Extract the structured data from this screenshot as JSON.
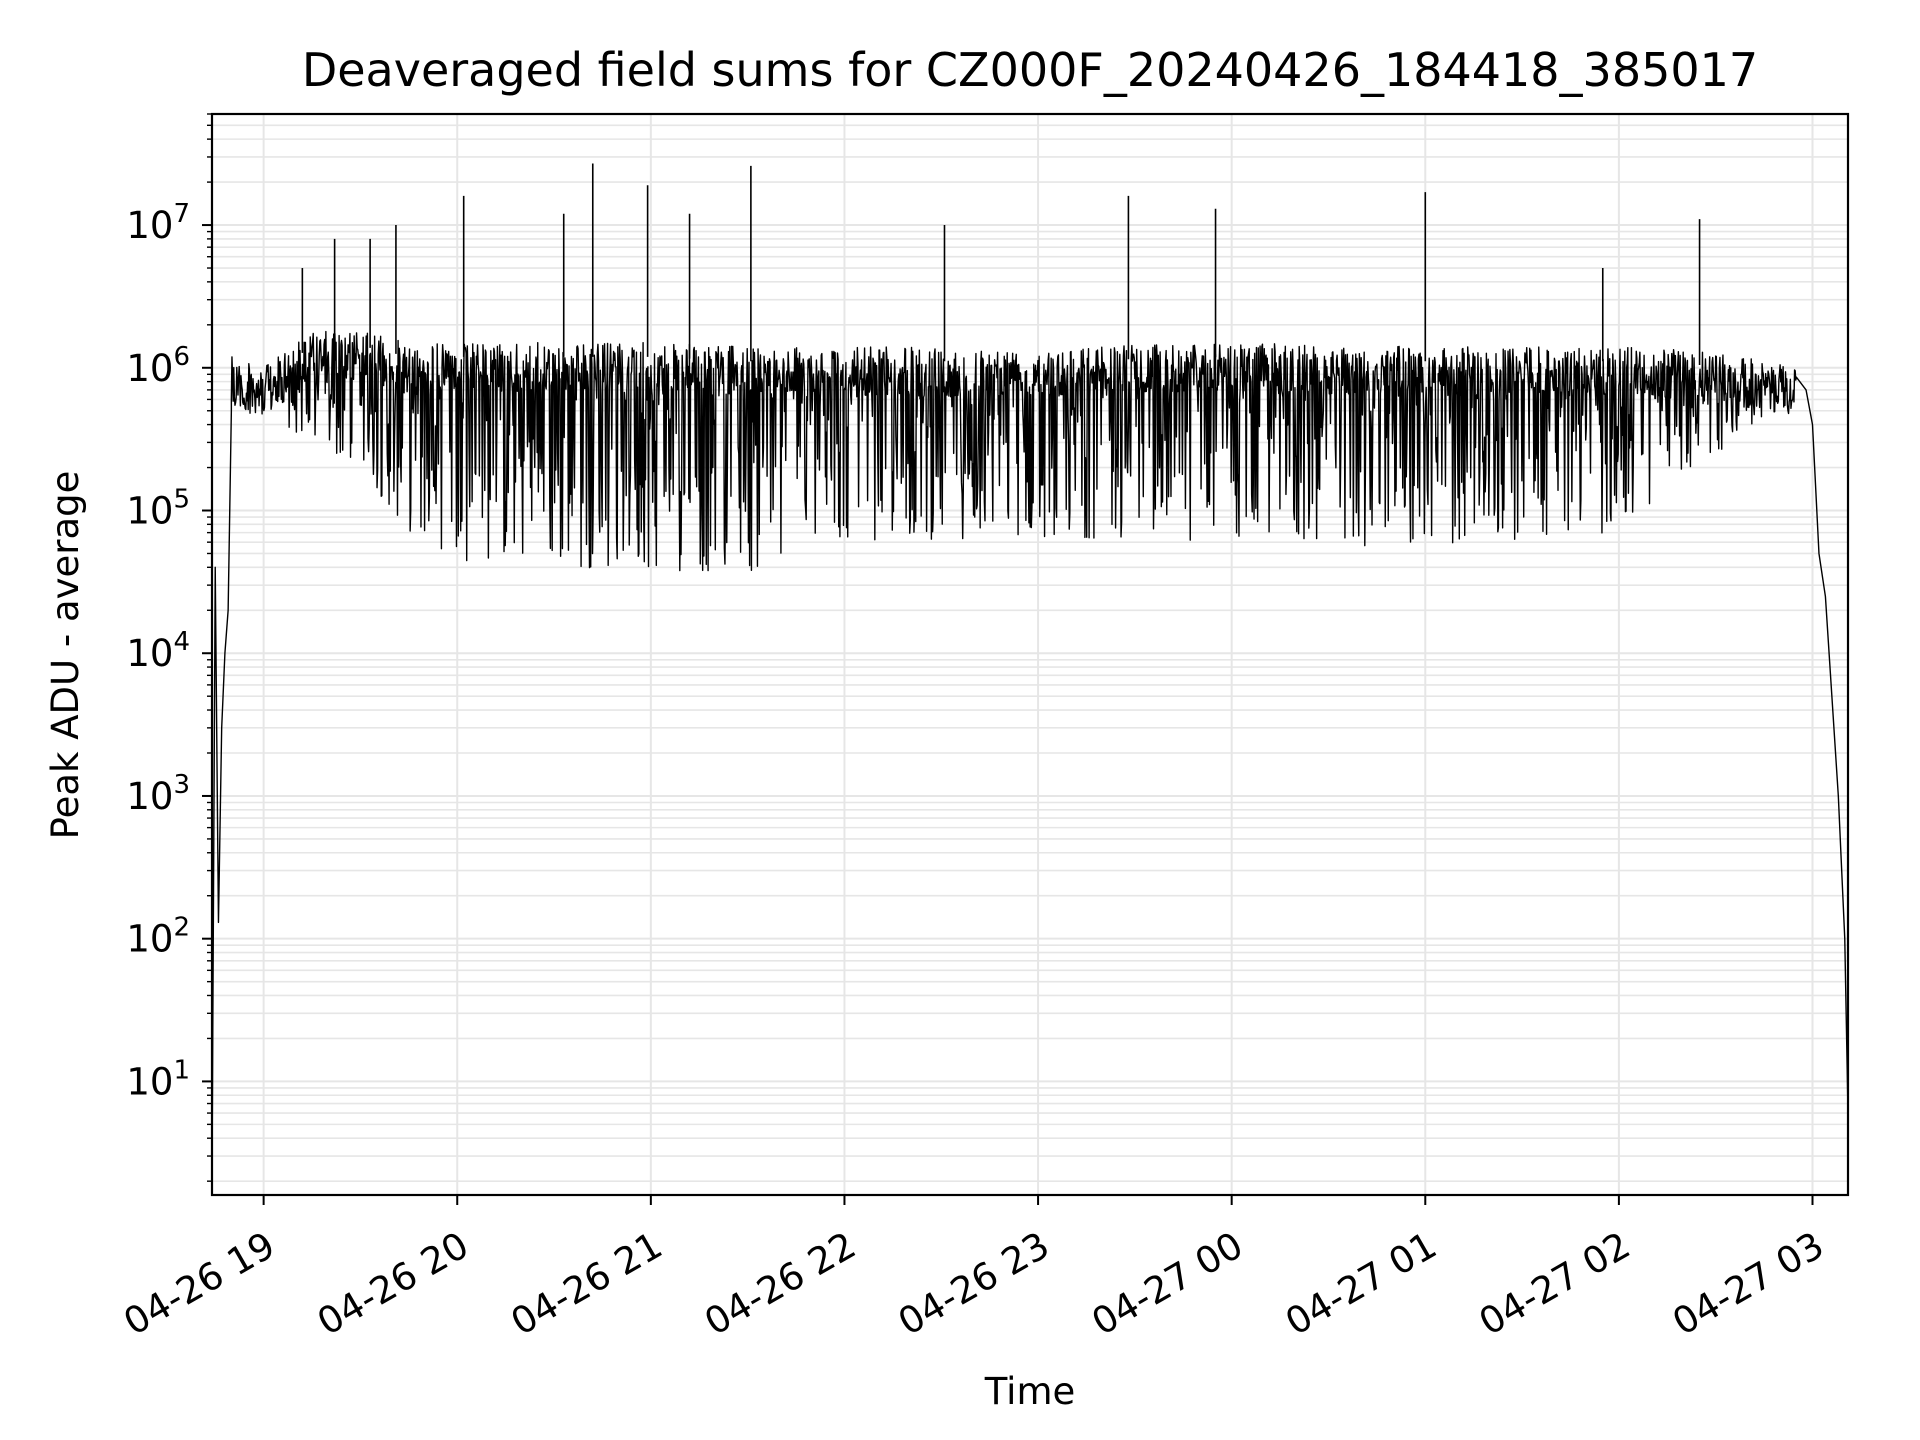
{
  "chart_data": {
    "type": "line",
    "title": "Deaveraged field sums for CZ000F_20240426_184418_385017",
    "xlabel": "Time",
    "ylabel": "Peak ADU - average",
    "yscale": "log",
    "ylim": [
      1.6,
      60000000
    ],
    "xlim": [
      "2024-04-26 18:44",
      "2024-04-27 03:11"
    ],
    "grid": true,
    "line_color": "#000000",
    "grid_color": "#e6e6e6",
    "x_ticks": [
      {
        "t": "2024-04-26 19:00",
        "label": "04-26 19"
      },
      {
        "t": "2024-04-26 20:00",
        "label": "04-26 20"
      },
      {
        "t": "2024-04-26 21:00",
        "label": "04-26 21"
      },
      {
        "t": "2024-04-26 22:00",
        "label": "04-26 22"
      },
      {
        "t": "2024-04-26 23:00",
        "label": "04-26 23"
      },
      {
        "t": "2024-04-27 00:00",
        "label": "04-27 00"
      },
      {
        "t": "2024-04-27 01:00",
        "label": "04-27 01"
      },
      {
        "t": "2024-04-27 02:00",
        "label": "04-27 02"
      },
      {
        "t": "2024-04-27 03:00",
        "label": "04-27 03"
      }
    ],
    "y_ticks": [
      {
        "value": 10,
        "base": "10",
        "exp": "1"
      },
      {
        "value": 100,
        "base": "10",
        "exp": "2"
      },
      {
        "value": 1000,
        "base": "10",
        "exp": "3"
      },
      {
        "value": 10000,
        "base": "10",
        "exp": "4"
      },
      {
        "value": 100000,
        "base": "10",
        "exp": "5"
      },
      {
        "value": 1000000,
        "base": "10",
        "exp": "6"
      },
      {
        "value": 10000000,
        "base": "10",
        "exp": "7"
      }
    ],
    "envelope": [
      {
        "t": "2024-04-26 18:50",
        "lower": 450000,
        "upper": 1200000
      },
      {
        "t": "2024-04-26 19:00",
        "lower": 500000,
        "upper": 1000000
      },
      {
        "t": "2024-04-26 19:15",
        "lower": 280000,
        "upper": 1800000
      },
      {
        "t": "2024-04-26 19:30",
        "lower": 180000,
        "upper": 1800000
      },
      {
        "t": "2024-04-26 19:45",
        "lower": 70000,
        "upper": 1500000
      },
      {
        "t": "2024-04-26 20:00",
        "lower": 45000,
        "upper": 1500000
      },
      {
        "t": "2024-04-26 20:30",
        "lower": 40000,
        "upper": 1500000
      },
      {
        "t": "2024-04-26 21:00",
        "lower": 38000,
        "upper": 1500000
      },
      {
        "t": "2024-04-26 21:30",
        "lower": 35000,
        "upper": 1400000
      },
      {
        "t": "2024-04-26 22:00",
        "lower": 60000,
        "upper": 1400000
      },
      {
        "t": "2024-04-26 23:00",
        "lower": 65000,
        "upper": 1400000
      },
      {
        "t": "2024-04-27 00:00",
        "lower": 60000,
        "upper": 1500000
      },
      {
        "t": "2024-04-27 01:00",
        "lower": 55000,
        "upper": 1400000
      },
      {
        "t": "2024-04-27 02:00",
        "lower": 70000,
        "upper": 1400000
      },
      {
        "t": "2024-04-27 02:30",
        "lower": 250000,
        "upper": 1300000
      },
      {
        "t": "2024-04-27 02:55",
        "lower": 600000,
        "upper": 1000000
      }
    ],
    "ramp_start": [
      {
        "t": "2024-04-26 18:44",
        "value": 2
      },
      {
        "t": "2024-04-26 18:45",
        "value": 40000
      },
      {
        "t": "2024-04-26 18:46",
        "value": 130
      },
      {
        "t": "2024-04-26 18:47",
        "value": 3000
      },
      {
        "t": "2024-04-26 18:48",
        "value": 10000
      },
      {
        "t": "2024-04-26 18:49",
        "value": 20000
      },
      {
        "t": "2024-04-26 18:50",
        "value": 500000
      }
    ],
    "ramp_end": [
      {
        "t": "2024-04-27 02:58",
        "value": 700000
      },
      {
        "t": "2024-04-27 03:00",
        "value": 400000
      },
      {
        "t": "2024-04-27 03:02",
        "value": 50000
      },
      {
        "t": "2024-04-27 03:04",
        "value": 25000
      },
      {
        "t": "2024-04-27 03:06",
        "value": 5000
      },
      {
        "t": "2024-04-27 03:08",
        "value": 1000
      },
      {
        "t": "2024-04-27 03:10",
        "value": 100
      },
      {
        "t": "2024-04-27 03:11",
        "value": 6
      }
    ],
    "spikes": [
      {
        "t": "2024-04-26 19:12",
        "value": 5000000
      },
      {
        "t": "2024-04-26 19:22",
        "value": 8000000
      },
      {
        "t": "2024-04-26 19:33",
        "value": 8000000
      },
      {
        "t": "2024-04-26 19:41",
        "value": 10000000
      },
      {
        "t": "2024-04-26 20:02",
        "value": 16000000
      },
      {
        "t": "2024-04-26 20:33",
        "value": 12000000
      },
      {
        "t": "2024-04-26 20:42",
        "value": 27000000
      },
      {
        "t": "2024-04-26 20:59",
        "value": 19000000
      },
      {
        "t": "2024-04-26 21:12",
        "value": 12000000
      },
      {
        "t": "2024-04-26 21:31",
        "value": 26000000
      },
      {
        "t": "2024-04-26 22:31",
        "value": 10000000
      },
      {
        "t": "2024-04-26 23:28",
        "value": 16000000
      },
      {
        "t": "2024-04-26 23:55",
        "value": 13000000
      },
      {
        "t": "2024-04-27 01:00",
        "value": 17000000
      },
      {
        "t": "2024-04-27 01:55",
        "value": 5000000
      },
      {
        "t": "2024-04-27 02:25",
        "value": 11000000
      }
    ]
  }
}
